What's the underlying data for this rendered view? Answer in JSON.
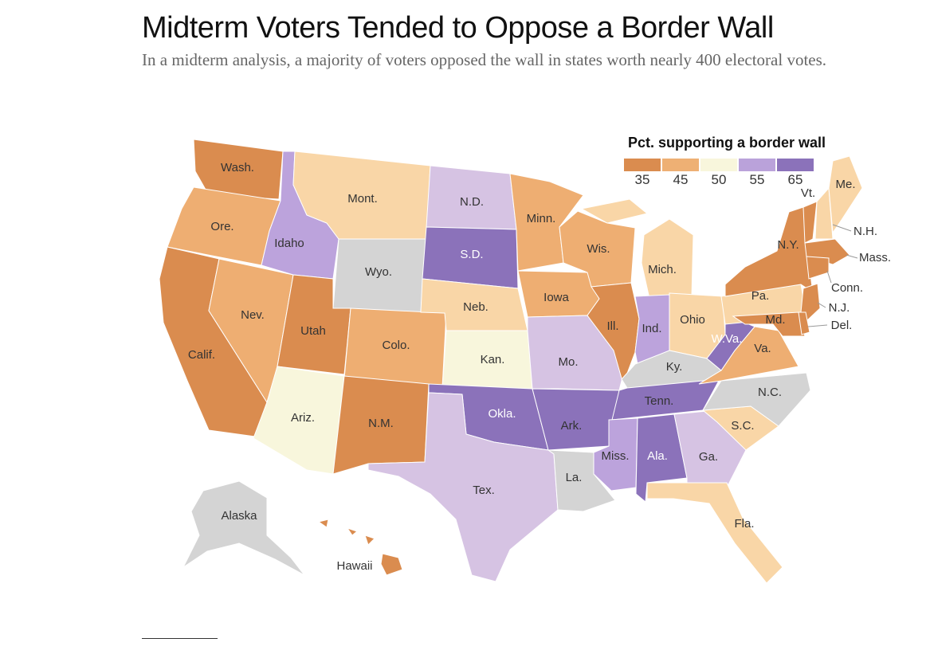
{
  "title": "Midterm Voters Tended to Oppose a Border Wall",
  "subtitle": "In a midterm analysis, a majority of voters opposed the wall in states worth nearly 400 electoral votes.",
  "legend": {
    "title": "Pct. supporting a border wall",
    "bins": [
      {
        "label": "35",
        "color": "#da8c4f"
      },
      {
        "label": "45",
        "color": "#eeb074"
      },
      {
        "label": "50",
        "color": "#f8f6dc"
      },
      {
        "label": "55",
        "color": "#baa2da"
      },
      {
        "label": "65",
        "color": "#8b72ba"
      }
    ]
  },
  "colors": {
    "d_orange": "#da8c4f",
    "orange": "#eeae72",
    "peach": "#f9d6a7",
    "cream": "#f8f6dc",
    "lavender": "#d6c3e3",
    "purple": "#bca3dc",
    "d_purple": "#8b72ba",
    "no_data": "#d4d4d4"
  },
  "states": [
    {
      "id": "wa",
      "label": "Wash.",
      "shade": "d_orange"
    },
    {
      "id": "or",
      "label": "Ore.",
      "shade": "orange"
    },
    {
      "id": "ca",
      "label": "Calif.",
      "shade": "d_orange"
    },
    {
      "id": "nv",
      "label": "Nev.",
      "shade": "orange"
    },
    {
      "id": "id",
      "label": "Idaho",
      "shade": "purple"
    },
    {
      "id": "mt",
      "label": "Mont.",
      "shade": "peach"
    },
    {
      "id": "wy",
      "label": "Wyo.",
      "shade": "no_data"
    },
    {
      "id": "ut",
      "label": "Utah",
      "shade": "d_orange"
    },
    {
      "id": "co",
      "label": "Colo.",
      "shade": "orange"
    },
    {
      "id": "az",
      "label": "Ariz.",
      "shade": "cream"
    },
    {
      "id": "nm",
      "label": "N.M.",
      "shade": "d_orange"
    },
    {
      "id": "nd",
      "label": "N.D.",
      "shade": "lavender"
    },
    {
      "id": "sd",
      "label": "S.D.",
      "shade": "d_purple"
    },
    {
      "id": "ne",
      "label": "Neb.",
      "shade": "peach"
    },
    {
      "id": "ks",
      "label": "Kan.",
      "shade": "cream"
    },
    {
      "id": "ok",
      "label": "Okla.",
      "shade": "d_purple"
    },
    {
      "id": "tx",
      "label": "Tex.",
      "shade": "lavender"
    },
    {
      "id": "mn",
      "label": "Minn.",
      "shade": "orange"
    },
    {
      "id": "ia",
      "label": "Iowa",
      "shade": "orange"
    },
    {
      "id": "mo",
      "label": "Mo.",
      "shade": "lavender"
    },
    {
      "id": "ar",
      "label": "Ark.",
      "shade": "d_purple"
    },
    {
      "id": "la",
      "label": "La.",
      "shade": "no_data"
    },
    {
      "id": "wi",
      "label": "Wis.",
      "shade": "orange"
    },
    {
      "id": "il",
      "label": "Ill.",
      "shade": "d_orange"
    },
    {
      "id": "mi",
      "label": "Mich.",
      "shade": "peach"
    },
    {
      "id": "in",
      "label": "Ind.",
      "shade": "purple"
    },
    {
      "id": "oh",
      "label": "Ohio",
      "shade": "peach"
    },
    {
      "id": "ky",
      "label": "Ky.",
      "shade": "no_data"
    },
    {
      "id": "tn",
      "label": "Tenn.",
      "shade": "d_purple"
    },
    {
      "id": "ms",
      "label": "Miss.",
      "shade": "purple"
    },
    {
      "id": "al",
      "label": "Ala.",
      "shade": "d_purple"
    },
    {
      "id": "ga",
      "label": "Ga.",
      "shade": "lavender"
    },
    {
      "id": "fl",
      "label": "Fla.",
      "shade": "peach"
    },
    {
      "id": "sc",
      "label": "S.C.",
      "shade": "peach"
    },
    {
      "id": "nc",
      "label": "N.C.",
      "shade": "no_data"
    },
    {
      "id": "va",
      "label": "Va.",
      "shade": "orange"
    },
    {
      "id": "wv",
      "label": "W.Va.",
      "shade": "d_purple"
    },
    {
      "id": "pa",
      "label": "Pa.",
      "shade": "peach"
    },
    {
      "id": "ny",
      "label": "N.Y.",
      "shade": "d_orange"
    },
    {
      "id": "vt",
      "label": "Vt.",
      "shade": "d_orange"
    },
    {
      "id": "nh",
      "label": "N.H.",
      "shade": "peach"
    },
    {
      "id": "me",
      "label": "Me.",
      "shade": "peach"
    },
    {
      "id": "ma",
      "label": "Mass.",
      "shade": "d_orange"
    },
    {
      "id": "ct",
      "label": "Conn.",
      "shade": "d_orange"
    },
    {
      "id": "nj",
      "label": "N.J.",
      "shade": "d_orange"
    },
    {
      "id": "md",
      "label": "Md.",
      "shade": "d_orange"
    },
    {
      "id": "de",
      "label": "Del.",
      "shade": "d_orange"
    },
    {
      "id": "ak",
      "label": "Alaska",
      "shade": "no_data"
    },
    {
      "id": "hi",
      "label": "Hawaii",
      "shade": "d_orange"
    }
  ]
}
